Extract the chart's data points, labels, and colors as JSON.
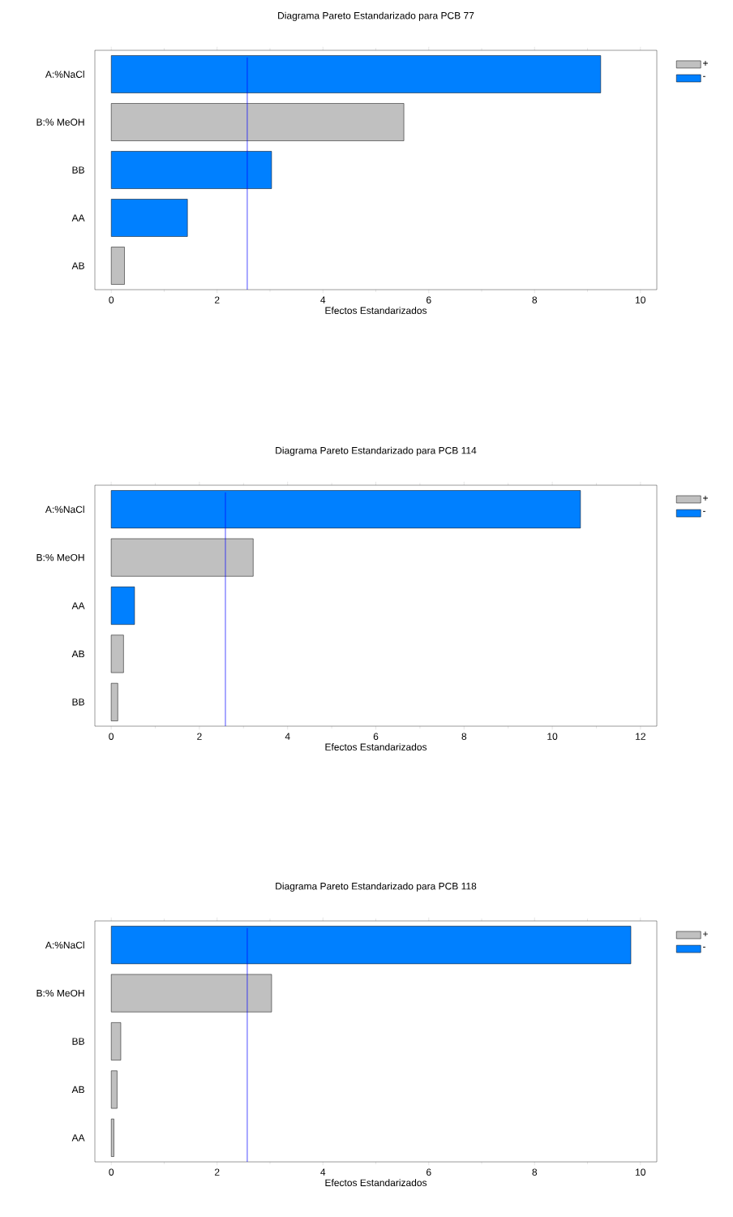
{
  "chart_data": [
    {
      "type": "bar",
      "orientation": "horizontal",
      "title": "Diagrama Pareto Estandarizado para PCB 77",
      "xlabel": "Efectos Estandarizados",
      "categories": [
        "A:%NaCl",
        "B:% MeOH",
        "BB",
        "AA",
        "AB"
      ],
      "series": [
        {
          "name": "+",
          "color": "#c0c0c0",
          "values": [
            null,
            5.53,
            null,
            null,
            0.25
          ]
        },
        {
          "name": "-",
          "color": "#0080ff",
          "values": [
            9.25,
            null,
            3.03,
            1.44,
            null
          ]
        }
      ],
      "xlim": [
        -0.31,
        10.31
      ],
      "xticks": [
        0,
        2,
        4,
        6,
        8,
        10
      ],
      "legend": "top right",
      "ref_lines": [
        {
          "axis": "x",
          "value": 2.57,
          "color": "#0000ff"
        }
      ]
    },
    {
      "type": "bar",
      "orientation": "horizontal",
      "title": "Diagrama Pareto Estandarizado para PCB 114",
      "xlabel": "Efectos Estandarizados",
      "categories": [
        "A:%NaCl",
        "B:% MeOH",
        "AA",
        "AB",
        "BB"
      ],
      "series": [
        {
          "name": "+",
          "color": "#c0c0c0",
          "values": [
            null,
            3.22,
            null,
            0.28,
            0.15
          ]
        },
        {
          "name": "-",
          "color": "#0080ff",
          "values": [
            10.64,
            null,
            0.53,
            null,
            null
          ]
        }
      ],
      "xlim": [
        -0.37,
        12.37
      ],
      "xticks": [
        0,
        2,
        4,
        6,
        8,
        10,
        12
      ],
      "legend": "top right",
      "ref_lines": [
        {
          "axis": "x",
          "value": 2.59,
          "color": "#0000ff"
        }
      ]
    },
    {
      "type": "bar",
      "orientation": "horizontal",
      "title": "Diagrama Pareto Estandarizado para PCB 118",
      "xlabel": "Efectos Estandarizados",
      "categories": [
        "A:%NaCl",
        "B:% MeOH",
        "BB",
        "AB",
        "AA"
      ],
      "series": [
        {
          "name": "+",
          "color": "#c0c0c0",
          "values": [
            null,
            3.03,
            0.18,
            0.11,
            0.05
          ]
        },
        {
          "name": "-",
          "color": "#0080ff",
          "values": [
            9.82,
            null,
            null,
            null,
            null
          ]
        }
      ],
      "xlim": [
        -0.31,
        10.31
      ],
      "xticks": [
        0,
        2,
        4,
        6,
        8,
        10
      ],
      "legend": "top right",
      "ref_lines": [
        {
          "axis": "x",
          "value": 2.57,
          "color": "#0000ff"
        }
      ]
    }
  ]
}
